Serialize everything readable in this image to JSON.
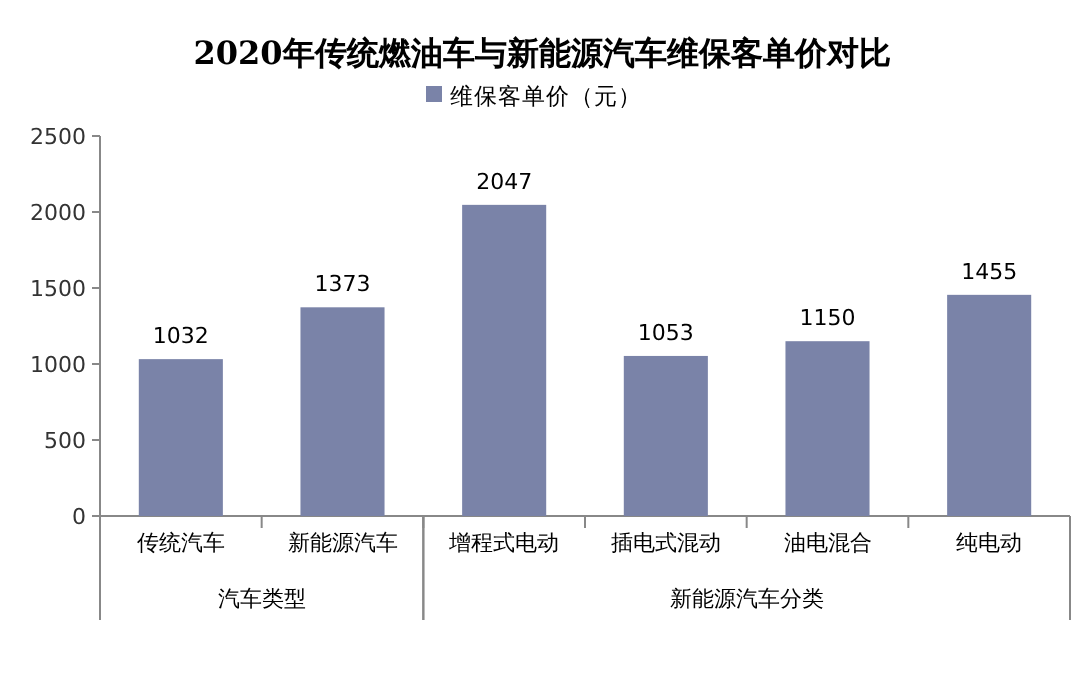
{
  "chart_data": {
    "type": "bar",
    "title": "2020年传统燃油车与新能源汽车维保客单价对比",
    "categories": [
      "传统汽车",
      "新能源汽车",
      "增程式电动",
      "插电式混动",
      "油电混合",
      "纯电动"
    ],
    "series": [
      {
        "name": "维保客单价（元）",
        "color": "#7a83a8",
        "values": [
          1032,
          1373,
          2047,
          1053,
          1150,
          1455
        ]
      }
    ],
    "ylim": [
      0,
      2500
    ],
    "yticks": [
      0,
      500,
      1000,
      1500,
      2000,
      2500
    ],
    "annotations": [
      "汽车类型",
      "新能源汽车分类"
    ],
    "data_labels": true,
    "legend": "top",
    "grid": false
  }
}
